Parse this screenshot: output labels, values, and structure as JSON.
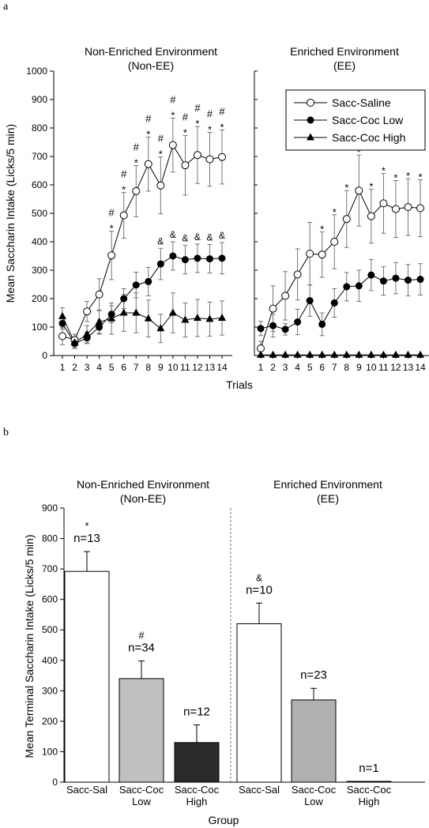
{
  "panel_a_letter": "a",
  "panel_b_letter": "b",
  "chart_data": [
    {
      "type": "line",
      "ylabel": "Mean Saccharin Intake (Licks/5 min)",
      "xlabel": "Trials",
      "ylim": [
        0,
        1000
      ],
      "yticks": [
        0,
        100,
        200,
        300,
        400,
        500,
        600,
        700,
        800,
        900,
        1000
      ],
      "x": [
        1,
        2,
        3,
        4,
        5,
        6,
        7,
        8,
        9,
        10,
        11,
        12,
        13,
        14
      ],
      "panels": [
        {
          "title": [
            "Non-Enriched Environment",
            "(Non-EE)"
          ],
          "series": [
            {
              "name": "Sacc-Saline",
              "marker": "open-circle",
              "values": [
                68,
                55,
                155,
                215,
                352,
                493,
                578,
                673,
                598,
                740,
                669,
                705,
                690,
                698
              ],
              "errors": [
                30,
                20,
                35,
                55,
                85,
                80,
                90,
                95,
                100,
                95,
                105,
                100,
                95,
                95
              ]
            },
            {
              "name": "Sacc-Coc Low",
              "marker": "filled-circle",
              "values": [
                113,
                42,
                62,
                100,
                145,
                200,
                248,
                260,
                322,
                350,
                337,
                342,
                340,
                342
              ],
              "errors": [
                20,
                15,
                20,
                25,
                30,
                35,
                45,
                50,
                55,
                50,
                50,
                50,
                50,
                55
              ]
            },
            {
              "name": "Sacc-Coc High",
              "marker": "filled-triangle",
              "values": [
                138,
                45,
                75,
                118,
                130,
                150,
                150,
                130,
                95,
                150,
                125,
                132,
                128,
                132
              ],
              "errors": [
                30,
                20,
                30,
                40,
                55,
                65,
                70,
                65,
                50,
                70,
                60,
                65,
                60,
                60
              ]
            }
          ],
          "annotations": [
            {
              "x": 5,
              "marks": [
                "#",
                "*"
              ]
            },
            {
              "x": 6,
              "marks": [
                "#",
                "*"
              ]
            },
            {
              "x": 7,
              "marks": [
                "#",
                "*"
              ]
            },
            {
              "x": 8,
              "marks": [
                "#",
                "*"
              ]
            },
            {
              "x": 9,
              "marks": [
                "#",
                "*"
              ]
            },
            {
              "x": 10,
              "marks": [
                "#",
                "*"
              ]
            },
            {
              "x": 11,
              "marks": [
                "#",
                "*"
              ]
            },
            {
              "x": 12,
              "marks": [
                "#",
                "*"
              ]
            },
            {
              "x": 13,
              "marks": [
                "#",
                "*"
              ]
            },
            {
              "x": 14,
              "marks": [
                "#",
                "*"
              ]
            },
            {
              "x": 9,
              "marks": [
                "&"
              ],
              "series": "Sacc-Coc Low"
            },
            {
              "x": 10,
              "marks": [
                "&"
              ],
              "series": "Sacc-Coc Low"
            },
            {
              "x": 11,
              "marks": [
                "&"
              ],
              "series": "Sacc-Coc Low"
            },
            {
              "x": 12,
              "marks": [
                "&"
              ],
              "series": "Sacc-Coc Low"
            },
            {
              "x": 13,
              "marks": [
                "&"
              ],
              "series": "Sacc-Coc Low"
            },
            {
              "x": 14,
              "marks": [
                "&"
              ],
              "series": "Sacc-Coc Low"
            }
          ]
        },
        {
          "title": [
            "Enriched Environment",
            "(EE)"
          ],
          "legend_position": "top-right",
          "series": [
            {
              "name": "Sacc-Saline",
              "marker": "open-circle",
              "values": [
                25,
                165,
                210,
                285,
                358,
                355,
                400,
                480,
                580,
                490,
                535,
                515,
                522,
                518
              ],
              "errors": [
                25,
                80,
                85,
                90,
                110,
                80,
                95,
                100,
                125,
                95,
                105,
                100,
                100,
                100
              ]
            },
            {
              "name": "Sacc-Coc Low",
              "marker": "filled-circle",
              "values": [
                95,
                105,
                92,
                118,
                193,
                110,
                185,
                242,
                245,
                283,
                262,
                272,
                265,
                268
              ],
              "errors": [
                25,
                40,
                20,
                45,
                55,
                40,
                50,
                50,
                55,
                55,
                50,
                55,
                55,
                55
              ]
            },
            {
              "name": "Sacc-Coc High",
              "marker": "filled-triangle",
              "values": [
                2,
                2,
                2,
                2,
                2,
                2,
                2,
                2,
                2,
                2,
                2,
                2,
                2,
                2
              ],
              "errors": [
                0,
                0,
                0,
                0,
                0,
                0,
                0,
                0,
                0,
                0,
                0,
                0,
                0,
                0
              ]
            }
          ],
          "annotations": [
            {
              "x": 6,
              "marks": [
                "*"
              ]
            },
            {
              "x": 7,
              "marks": [
                "*"
              ]
            },
            {
              "x": 8,
              "marks": [
                "*"
              ]
            },
            {
              "x": 9,
              "marks": [
                "*"
              ]
            },
            {
              "x": 10,
              "marks": [
                "*"
              ]
            },
            {
              "x": 11,
              "marks": [
                "*"
              ]
            },
            {
              "x": 12,
              "marks": [
                "*"
              ]
            },
            {
              "x": 13,
              "marks": [
                "*"
              ]
            },
            {
              "x": 14,
              "marks": [
                "*"
              ]
            }
          ]
        }
      ]
    },
    {
      "type": "bar",
      "ylabel": "Mean Terminal Saccharin Intake (Licks/5 min)",
      "xlabel": "Group",
      "ylim": [
        0,
        900
      ],
      "yticks": [
        0,
        100,
        200,
        300,
        400,
        500,
        600,
        700,
        800,
        900
      ],
      "group_titles": [
        [
          "Non-Enriched Environment",
          "(Non-EE)"
        ],
        [
          "Enriched Environment",
          "(EE)"
        ]
      ],
      "bars": [
        {
          "category": [
            "Sacc-Sal"
          ],
          "group": 0,
          "value": 692,
          "error": 65,
          "n": "n=13",
          "mark": "*",
          "color": "#ffffff"
        },
        {
          "category": [
            "Sacc-Coc",
            "Low"
          ],
          "group": 0,
          "value": 340,
          "error": 58,
          "n": "n=34",
          "mark": "#",
          "color": "#c0c0c0"
        },
        {
          "category": [
            "Sacc-Coc",
            "High"
          ],
          "group": 0,
          "value": 130,
          "error": 58,
          "n": "n=12",
          "mark": "",
          "color": "#2a2a2a"
        },
        {
          "category": [
            "Sacc-Sal"
          ],
          "group": 1,
          "value": 520,
          "error": 68,
          "n": "n=10",
          "mark": "&",
          "color": "#ffffff"
        },
        {
          "category": [
            "Sacc-Coc",
            "Low"
          ],
          "group": 1,
          "value": 270,
          "error": 38,
          "n": "n=23",
          "mark": "",
          "color": "#b0b0b0"
        },
        {
          "category": [
            "Sacc-Coc",
            "High"
          ],
          "group": 1,
          "value": 2,
          "error": 0,
          "n": "n=1",
          "mark": "",
          "color": "#ffffff"
        }
      ]
    }
  ]
}
